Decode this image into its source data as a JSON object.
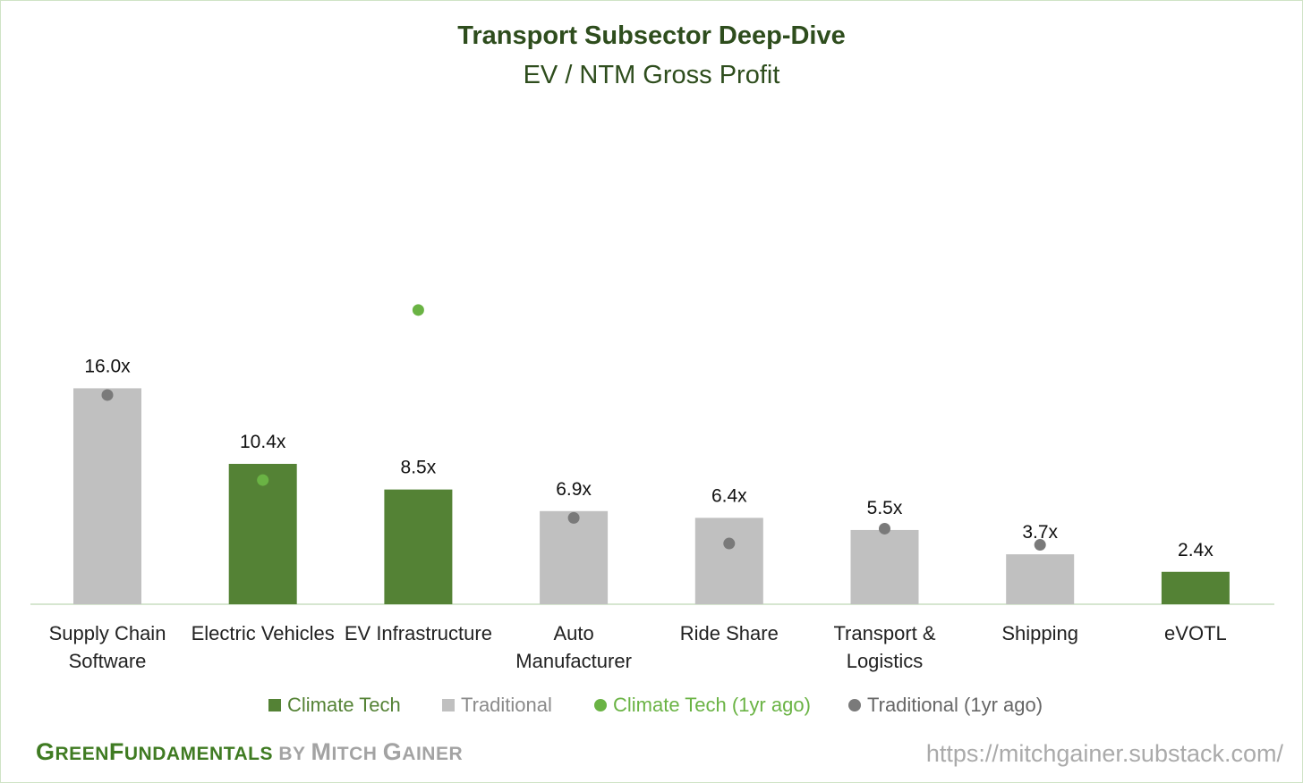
{
  "colors": {
    "climate": "#548235",
    "traditional": "#c0c0c0",
    "climate_1yr": "#6ab344",
    "traditional_1yr": "#7a7a7a",
    "title": "#2e4d1d",
    "axis": "#d6e6d0"
  },
  "chart_data": {
    "type": "bar",
    "title": "Transport Subsector Deep-Dive",
    "subtitle": "EV / NTM Gross Profit",
    "categories": [
      [
        "Supply Chain",
        "Software"
      ],
      [
        "Electric Vehicles"
      ],
      [
        "EV Infrastructure"
      ],
      [
        "Auto",
        "Manufacturer"
      ],
      [
        "Ride Share"
      ],
      [
        "Transport &",
        "Logistics"
      ],
      [
        "Shipping"
      ],
      [
        "eVOTL"
      ]
    ],
    "values": [
      16.0,
      10.4,
      8.5,
      6.9,
      6.4,
      5.5,
      3.7,
      2.4
    ],
    "data_labels": [
      "16.0x",
      "10.4x",
      "8.5x",
      "6.9x",
      "6.4x",
      "5.5x",
      "3.7x",
      "2.4x"
    ],
    "bar_group": [
      "traditional",
      "climate",
      "climate",
      "traditional",
      "traditional",
      "traditional",
      "traditional",
      "climate"
    ],
    "one_year_ago": [
      15.5,
      9.2,
      21.8,
      6.4,
      4.5,
      5.6,
      4.4,
      null
    ],
    "ylim": [
      0,
      30
    ],
    "grid": false,
    "legend_position": "bottom",
    "series": [
      {
        "name": "Climate Tech",
        "key": "climate",
        "marker": "bar"
      },
      {
        "name": "Traditional",
        "key": "traditional",
        "marker": "bar"
      },
      {
        "name": "Climate Tech (1yr ago)",
        "key": "climate_1yr",
        "marker": "dot"
      },
      {
        "name": "Traditional (1yr ago)",
        "key": "traditional_1yr",
        "marker": "dot"
      }
    ]
  },
  "footer": {
    "brand_parts": [
      {
        "text": "G",
        "size": "big",
        "cls": "g"
      },
      {
        "text": "REEN",
        "size": "sm",
        "cls": "g"
      },
      {
        "text": "F",
        "size": "big",
        "cls": "g"
      },
      {
        "text": "UNDAMENTALS",
        "size": "sm",
        "cls": "g"
      },
      {
        "text": " BY ",
        "size": "sm",
        "cls": "by"
      },
      {
        "text": "M",
        "size": "big",
        "cls": "by"
      },
      {
        "text": "ITCH ",
        "size": "sm",
        "cls": "by"
      },
      {
        "text": "G",
        "size": "big",
        "cls": "by"
      },
      {
        "text": "AINER",
        "size": "sm",
        "cls": "by"
      }
    ],
    "url": "https://mitchgainer.substack.com/"
  }
}
